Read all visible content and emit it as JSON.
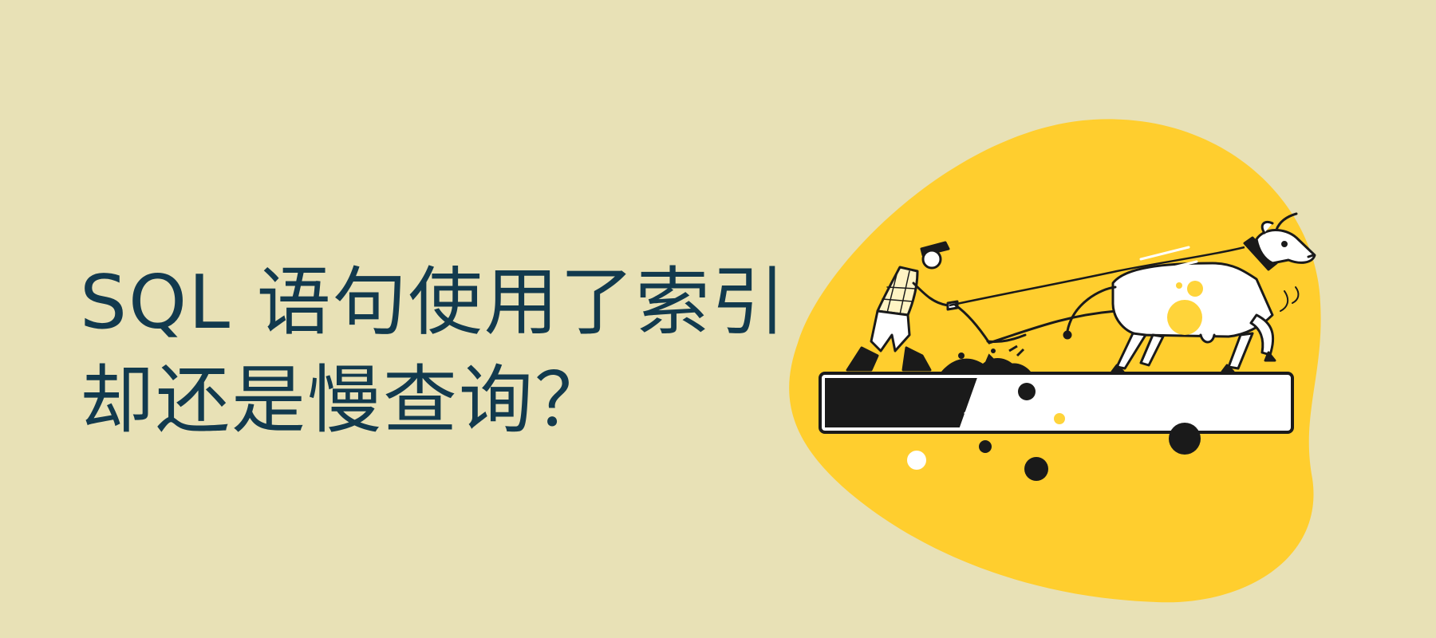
{
  "headline": {
    "line1": "SQL 语句使用了索引",
    "line2": "却还是慢查询？"
  },
  "progress": {
    "filled_fraction": 0.31
  },
  "illustration": {
    "subject": "farmer-ploughing-with-ox",
    "icons": [
      "farmer-icon",
      "ox-icon",
      "plough-icon",
      "progress-bar-icon"
    ]
  },
  "colors": {
    "background": "#E8E1B6",
    "blob": "#FFCE2E",
    "text": "#123A4E",
    "ink": "#1A1A1A",
    "white": "#FFFFFF",
    "accent_yellow": "#FFD43A"
  }
}
